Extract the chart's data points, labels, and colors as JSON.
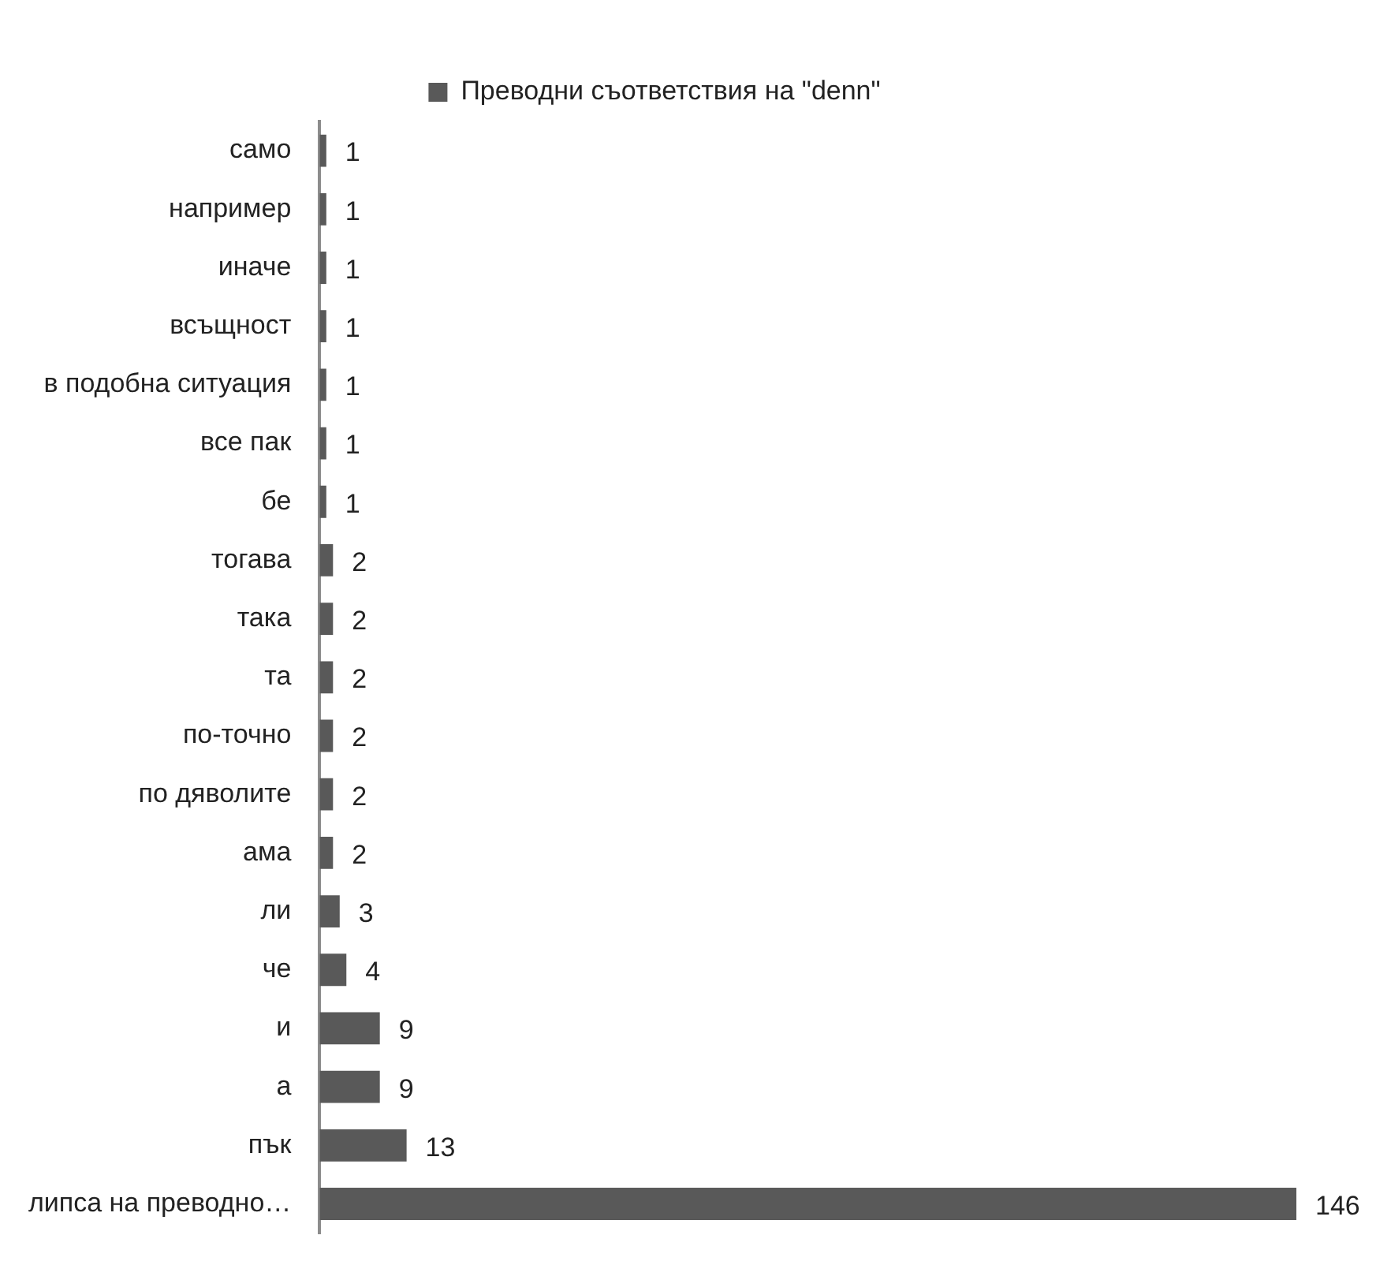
{
  "chart_data": {
    "type": "bar",
    "orientation": "horizontal",
    "legend": "top",
    "data_labels": true,
    "categories": [
      "само",
      "например",
      "иначе",
      "всъщност",
      "в подобна ситуация",
      "все пак",
      "бе",
      "тогава",
      "така",
      "та",
      "по-точно",
      "по дяволите",
      "ама",
      "ли",
      "че",
      "и",
      "а",
      "пък",
      "липса на преводно…"
    ],
    "series": [
      {
        "name": "Преводни съответствия на \"denn\"",
        "color": "#595959",
        "values": [
          1,
          1,
          1,
          1,
          1,
          1,
          1,
          2,
          2,
          2,
          2,
          2,
          2,
          3,
          4,
          9,
          9,
          13,
          146
        ]
      }
    ]
  }
}
